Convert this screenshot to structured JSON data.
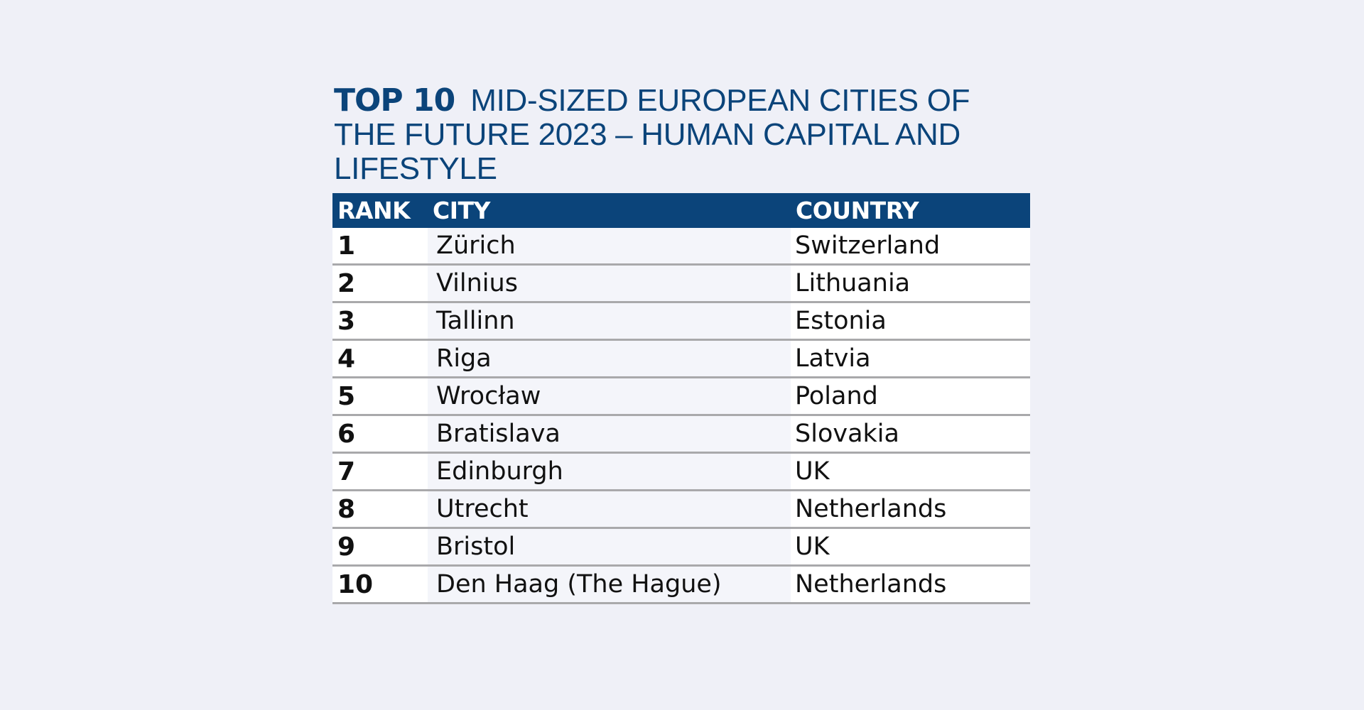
{
  "title": {
    "lead": "TOP 10",
    "rest": "MID-SIZED EUROPEAN CITIES OF THE FUTURE 2023 – HUMAN CAPITAL AND LIFESTYLE"
  },
  "table": {
    "headers": {
      "rank": "RANK",
      "city": "CITY",
      "country": "COUNTRY"
    },
    "rows": [
      {
        "rank": "1",
        "city": "Zürich",
        "country": "Switzerland"
      },
      {
        "rank": "2",
        "city": "Vilnius",
        "country": "Lithuania"
      },
      {
        "rank": "3",
        "city": "Tallinn",
        "country": "Estonia"
      },
      {
        "rank": "4",
        "city": "Riga",
        "country": "Latvia"
      },
      {
        "rank": "5",
        "city": "Wrocław",
        "country": "Poland"
      },
      {
        "rank": "6",
        "city": "Bratislava",
        "country": "Slovakia"
      },
      {
        "rank": "7",
        "city": "Edinburgh",
        "country": "UK"
      },
      {
        "rank": "8",
        "city": "Utrecht",
        "country": "Netherlands"
      },
      {
        "rank": "9",
        "city": "Bristol",
        "country": "UK"
      },
      {
        "rank": "10",
        "city": "Den Haag (The Hague)",
        "country": "Netherlands"
      }
    ]
  },
  "colors": {
    "header_bg": "#0b447a",
    "title": "#0b447a",
    "page_bg": "#eff0f7",
    "row_rule": "#a9a9ab"
  }
}
